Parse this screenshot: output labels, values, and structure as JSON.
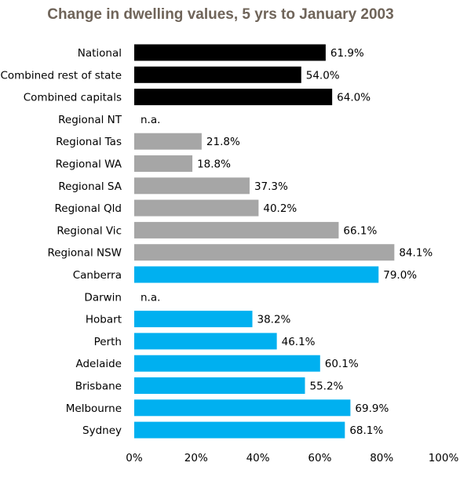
{
  "chart_data": {
    "type": "bar",
    "orientation": "horizontal",
    "title": "Change in dwelling values, 5 yrs to January 2003",
    "xlabel": "",
    "ylabel": "",
    "xlim": [
      0,
      100
    ],
    "grid": false,
    "legend": "none",
    "x_ticks": [
      "0%",
      "20%",
      "40%",
      "60%",
      "80%",
      "100%"
    ],
    "colors": {
      "summary": "#000000",
      "regional": "#a6a6a6",
      "capital": "#00b0f0",
      "title": "#6f6459"
    },
    "bars": [
      {
        "category": "National",
        "value": 61.9,
        "label": "61.9%",
        "group": "summary"
      },
      {
        "category": "Combined rest of state",
        "value": 54.0,
        "label": "54.0%",
        "group": "summary"
      },
      {
        "category": "Combined capitals",
        "value": 64.0,
        "label": "64.0%",
        "group": "summary"
      },
      {
        "category": "Regional NT",
        "value": null,
        "label": "n.a.",
        "group": "regional"
      },
      {
        "category": "Regional Tas",
        "value": 21.8,
        "label": "21.8%",
        "group": "regional"
      },
      {
        "category": "Regional WA",
        "value": 18.8,
        "label": "18.8%",
        "group": "regional"
      },
      {
        "category": "Regional SA",
        "value": 37.3,
        "label": "37.3%",
        "group": "regional"
      },
      {
        "category": "Regional Qld",
        "value": 40.2,
        "label": "40.2%",
        "group": "regional"
      },
      {
        "category": "Regional Vic",
        "value": 66.1,
        "label": "66.1%",
        "group": "regional"
      },
      {
        "category": "Regional NSW",
        "value": 84.1,
        "label": "84.1%",
        "group": "regional"
      },
      {
        "category": "Canberra",
        "value": 79.0,
        "label": "79.0%",
        "group": "capital"
      },
      {
        "category": "Darwin",
        "value": null,
        "label": "n.a.",
        "group": "capital"
      },
      {
        "category": "Hobart",
        "value": 38.2,
        "label": "38.2%",
        "group": "capital"
      },
      {
        "category": "Perth",
        "value": 46.1,
        "label": "46.1%",
        "group": "capital"
      },
      {
        "category": "Adelaide",
        "value": 60.1,
        "label": "60.1%",
        "group": "capital"
      },
      {
        "category": "Brisbane",
        "value": 55.2,
        "label": "55.2%",
        "group": "capital"
      },
      {
        "category": "Melbourne",
        "value": 69.9,
        "label": "69.9%",
        "group": "capital"
      },
      {
        "category": "Sydney",
        "value": 68.1,
        "label": "68.1%",
        "group": "capital"
      }
    ]
  }
}
